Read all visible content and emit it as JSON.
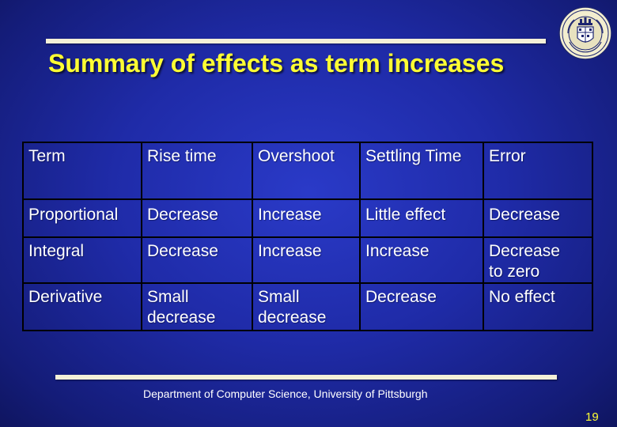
{
  "slide": {
    "title": "Summary of effects as term increases",
    "footer": "Department of Computer Science, University of Pittsburgh",
    "page_number": "19",
    "logo_icon": "university-of-pittsburgh-seal",
    "colors": {
      "background": "#1f2ba8",
      "title": "#ffff33",
      "text": "#ffffff",
      "rule": "#f4f0d8"
    }
  },
  "table": {
    "header": [
      "Term",
      "Rise time",
      "Overshoot",
      "Settling Time",
      "Error"
    ],
    "rows": [
      [
        "Proportional",
        "Decrease",
        "Increase",
        "Little effect",
        "Decrease"
      ],
      [
        "Integral",
        "Decrease",
        "Increase",
        "Increase",
        "Decrease\nto zero"
      ],
      [
        "Derivative",
        "Small\ndecrease",
        "Small\ndecrease",
        "Decrease",
        "No effect"
      ]
    ]
  }
}
